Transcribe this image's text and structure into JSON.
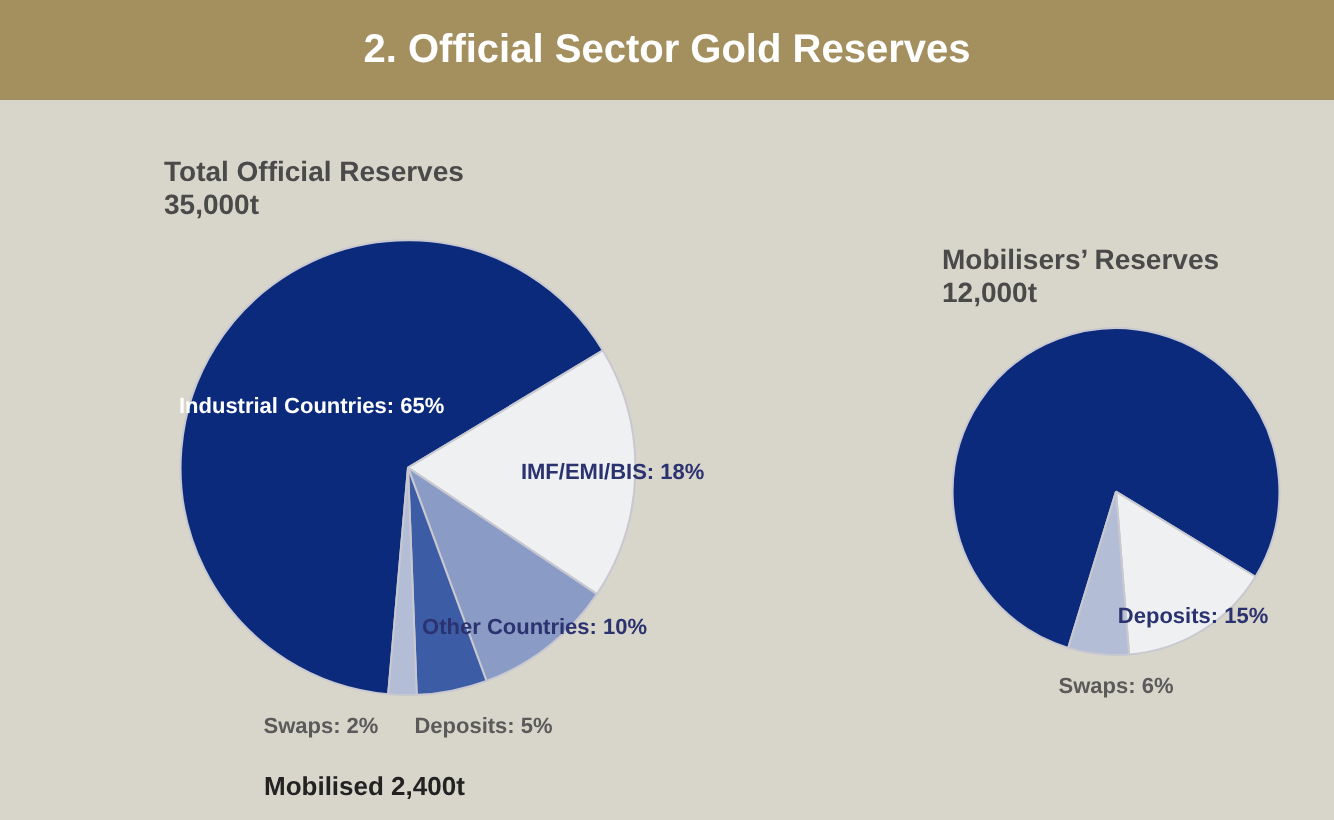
{
  "chart_data": [
    {
      "type": "pie",
      "title": "2. Official Sector Gold Reserves",
      "subtitle": "Total Official Reserves\n35,000t",
      "categories": [
        "Industrial Countries",
        "IMF/EMI/BIS",
        "Other Countries",
        "Deposits",
        "Swaps"
      ],
      "values": [
        65,
        18,
        10,
        5,
        2
      ],
      "value_labels": [
        "65%",
        "18%",
        "10%",
        "5%",
        "2%"
      ],
      "colors": [
        "#0b2a7c",
        "#eef0f2",
        "#8a9cc6",
        "#3d5ca6",
        "#b3bdd6"
      ],
      "annotations": [
        "Mobilised 2,400t"
      ]
    },
    {
      "type": "pie",
      "title": "Mobilisers’ Reserves",
      "subtitle": "12,000t",
      "categories": [
        null,
        "Deposits",
        "Swaps"
      ],
      "values": [
        79,
        15,
        6
      ],
      "value_labels": [
        null,
        "15%",
        "6%"
      ],
      "colors": [
        "#0b2a7c",
        "#eef0f2",
        "#b3bdd6"
      ]
    }
  ]
}
